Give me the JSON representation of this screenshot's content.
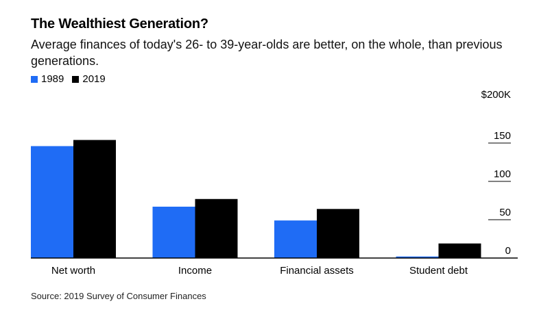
{
  "chart_data": {
    "type": "bar",
    "title": "The Wealthiest Generation?",
    "subtitle": "Average finances of today's 26- to 39-year-olds are better, on the whole, than previous generations.",
    "categories": [
      "Net worth",
      "Income",
      "Financial assets",
      "Student debt"
    ],
    "series": [
      {
        "name": "1989",
        "color": "#1f6cf5",
        "values": [
          146,
          67,
          49,
          2
        ]
      },
      {
        "name": "2019",
        "color": "#000000",
        "values": [
          154,
          77,
          64,
          19
        ]
      }
    ],
    "ylim": [
      0,
      200
    ],
    "yticks": [
      {
        "value": 0,
        "label": "0"
      },
      {
        "value": 50,
        "label": "50"
      },
      {
        "value": 100,
        "label": "100"
      },
      {
        "value": 150,
        "label": "150"
      },
      {
        "value": 200,
        "label": "$200K"
      }
    ],
    "xlabel": "",
    "ylabel": "",
    "legend_position": "top-left",
    "source": "Source: 2019 Survey of Consumer Finances"
  }
}
